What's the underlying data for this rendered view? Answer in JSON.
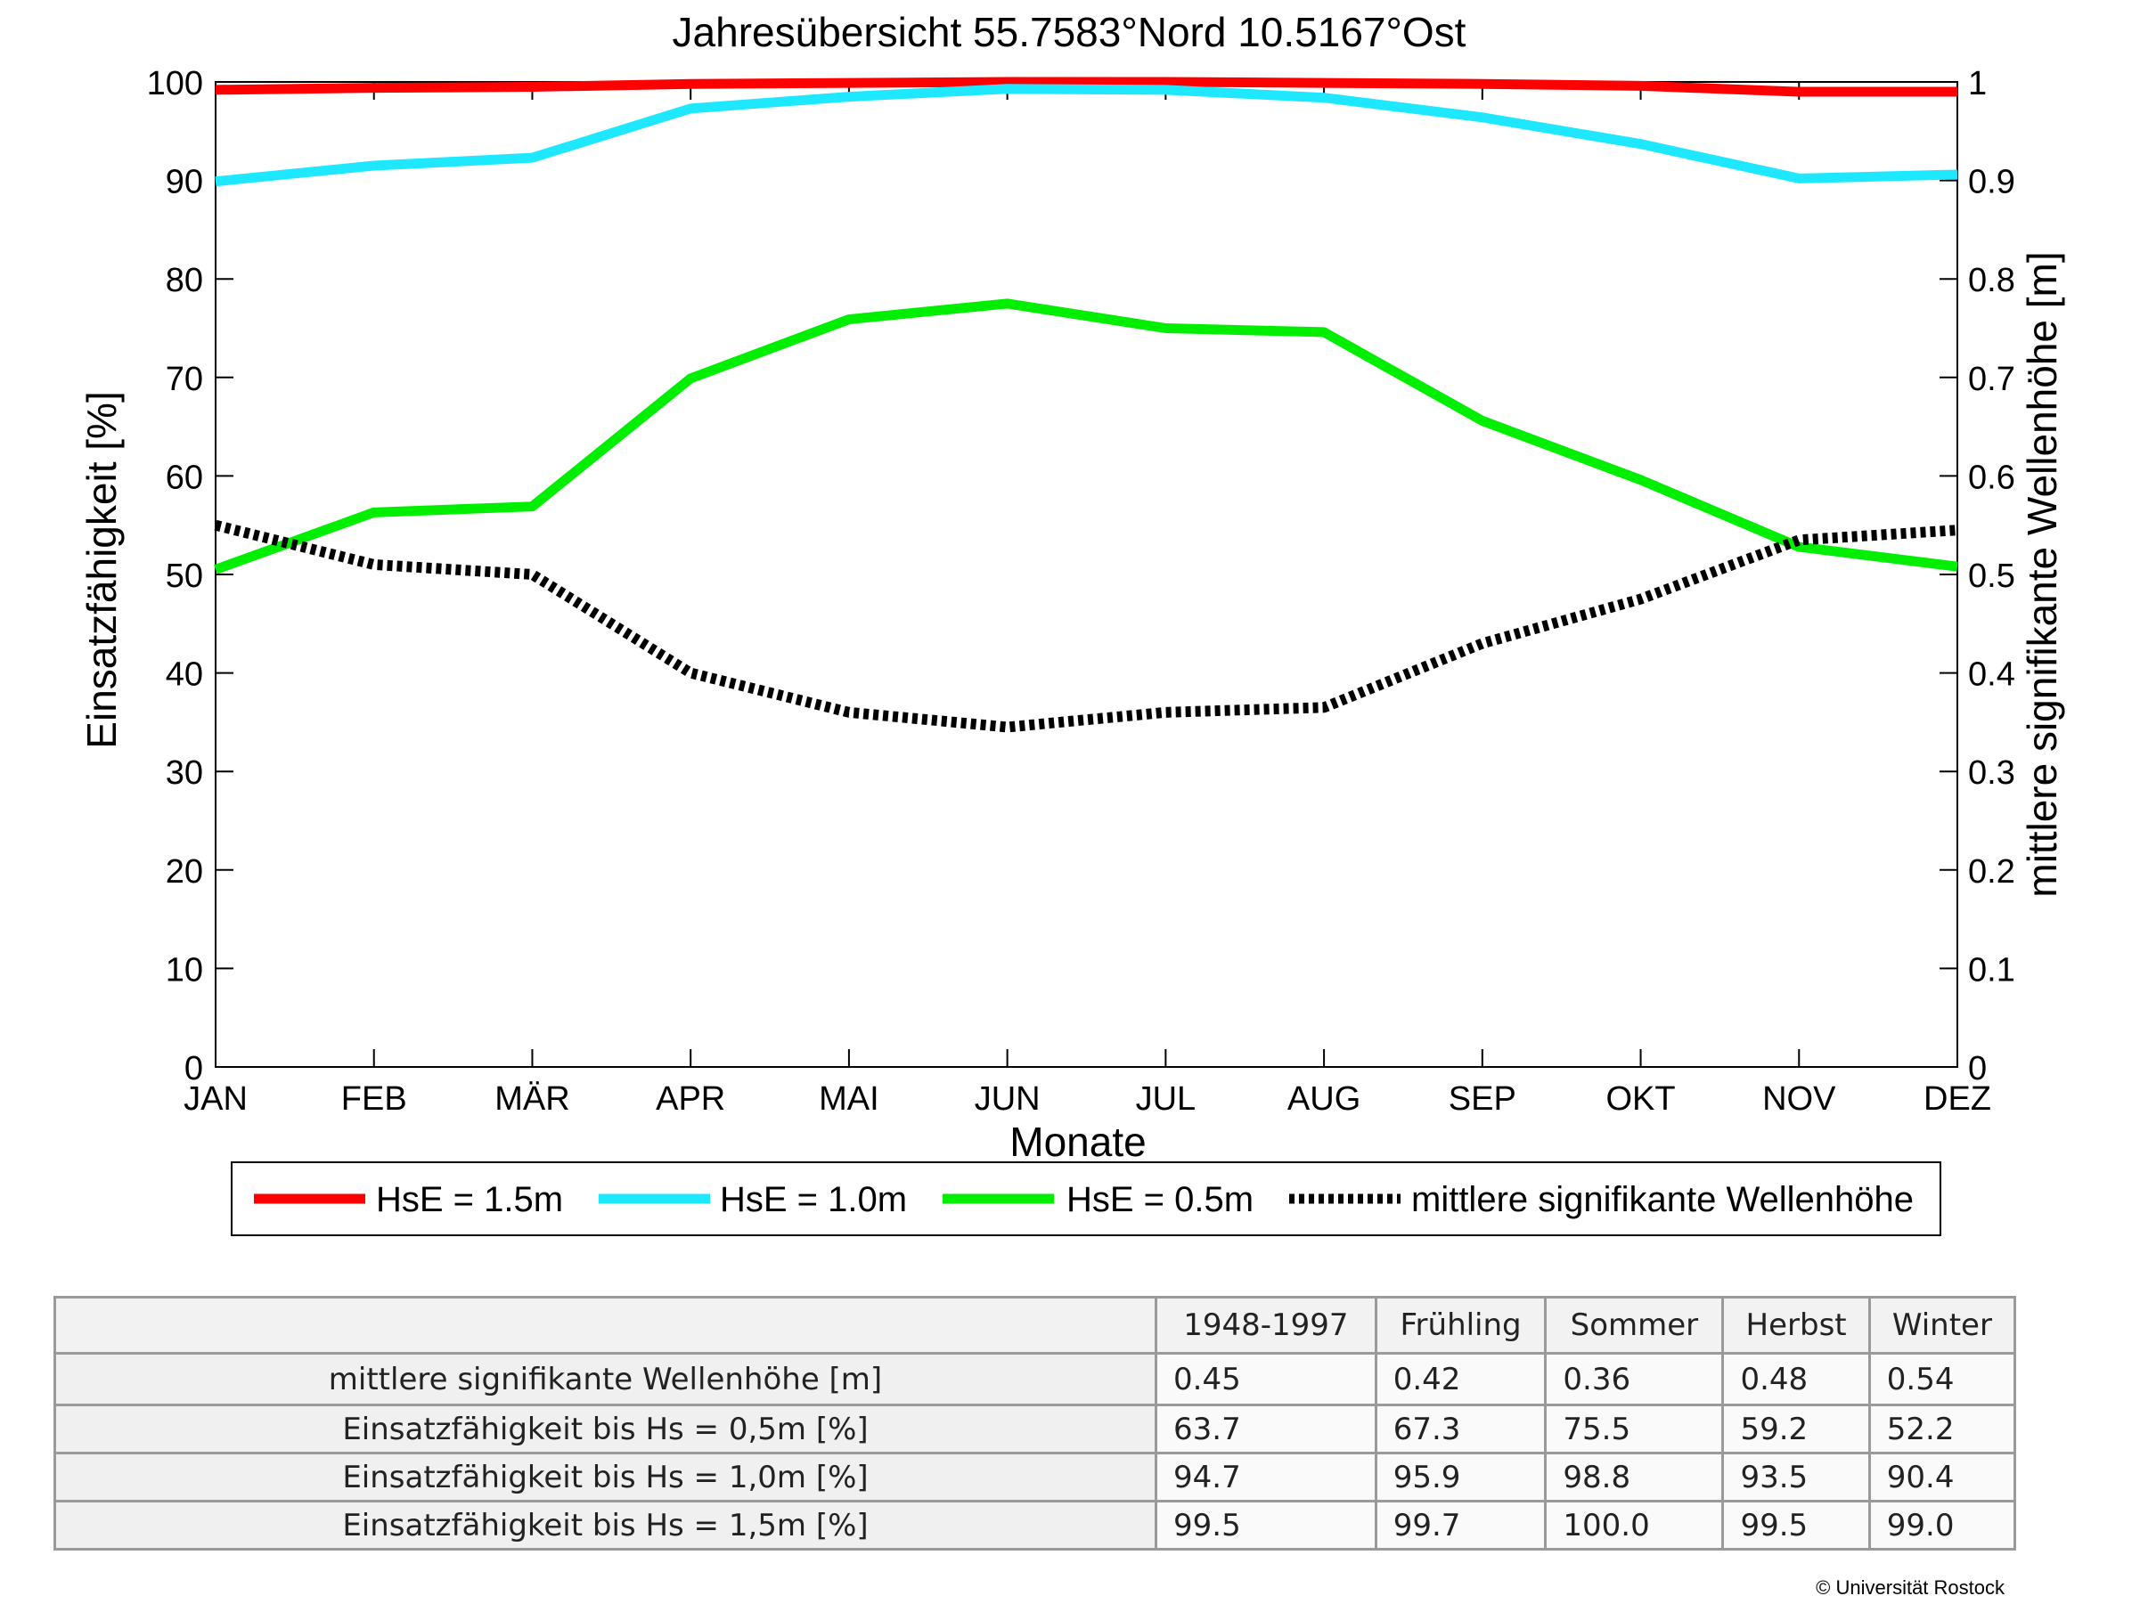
{
  "chart_data": {
    "type": "line",
    "title": "Jahresübersicht  55.7583°Nord  10.5167°Ost",
    "xlabel": "Monate",
    "ylabel_left": "Einsatzfähigkeit [%]",
    "ylabel_right": "mittlere signifikante Wellenhöhe [m]",
    "categories": [
      "JAN",
      "FEB",
      "MÄR",
      "APR",
      "MAI",
      "JUN",
      "JUL",
      "AUG",
      "SEP",
      "OKT",
      "NOV",
      "DEZ"
    ],
    "ylim_left": [
      0,
      100
    ],
    "ylim_right": [
      0,
      1
    ],
    "yticks_left": [
      "0",
      "10",
      "20",
      "30",
      "40",
      "50",
      "60",
      "70",
      "80",
      "90",
      "100"
    ],
    "yticks_right": [
      "0",
      "0.1",
      "0.2",
      "0.3",
      "0.4",
      "0.5",
      "0.6",
      "0.7",
      "0.8",
      "0.9",
      "1"
    ],
    "grid": false,
    "legend_position": "bottom",
    "series": [
      {
        "name": "HsE = 1.5m",
        "axis": "left",
        "color": "#ff0000",
        "style": "solid",
        "values": [
          99.2,
          99.4,
          99.5,
          99.8,
          99.9,
          100.0,
          100.0,
          99.9,
          99.8,
          99.6,
          99.0,
          99.0
        ]
      },
      {
        "name": "HsE = 1.0m",
        "axis": "left",
        "color": "#1ee8ff",
        "style": "solid",
        "values": [
          89.9,
          91.5,
          92.3,
          97.3,
          98.5,
          99.3,
          99.2,
          98.4,
          96.4,
          93.7,
          90.2,
          90.6
        ]
      },
      {
        "name": "HsE = 0.5m",
        "axis": "left",
        "color": "#00ee00",
        "style": "solid",
        "values": [
          50.5,
          56.3,
          56.9,
          69.9,
          75.9,
          77.5,
          75.0,
          74.6,
          65.6,
          59.6,
          52.8,
          50.8
        ]
      },
      {
        "name": "mittlere signifikante Wellenhöhe",
        "axis": "right",
        "color": "#000000",
        "style": "dotted",
        "values": [
          0.55,
          0.51,
          0.5,
          0.4,
          0.36,
          0.345,
          0.36,
          0.365,
          0.43,
          0.475,
          0.535,
          0.545
        ]
      }
    ]
  },
  "table": {
    "columns": [
      "1948-1997",
      "Frühling",
      "Sommer",
      "Herbst",
      "Winter"
    ],
    "rows": [
      {
        "label": "mittlere signifikante Wellenhöhe [m]",
        "values": [
          "0.45",
          "0.42",
          "0.36",
          "0.48",
          "0.54"
        ]
      },
      {
        "label": "Einsatzfähigkeit bis Hs = 0,5m [%]",
        "values": [
          "63.7",
          "67.3",
          "75.5",
          "59.2",
          "52.2"
        ]
      },
      {
        "label": "Einsatzfähigkeit bis Hs = 1,0m [%]",
        "values": [
          "94.7",
          "95.9",
          "98.8",
          "93.5",
          "90.4"
        ]
      },
      {
        "label": "Einsatzfähigkeit bis Hs = 1,5m [%]",
        "values": [
          "99.5",
          "99.7",
          "100.0",
          "99.5",
          "99.0"
        ]
      }
    ]
  },
  "copyright": "© Universität Rostock"
}
